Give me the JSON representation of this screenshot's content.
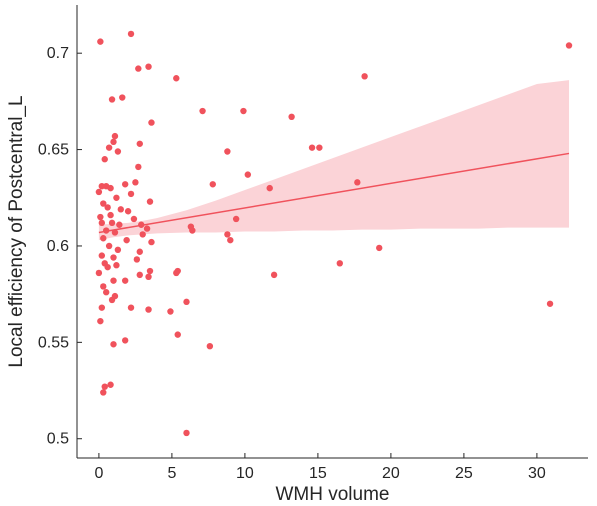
{
  "chart_data": {
    "type": "scatter",
    "title": "",
    "xlabel": "WMH volume",
    "ylabel": "Local efficiency of Postcentral_L",
    "xlim": [
      -1.5,
      33.5
    ],
    "ylim": [
      0.49,
      0.725
    ],
    "xticks": [
      0,
      5,
      10,
      15,
      20,
      25,
      30
    ],
    "yticks": [
      0.5,
      0.55,
      0.6,
      0.65,
      0.7
    ],
    "ytick_labels": [
      "0.5",
      "0.55",
      "0.6",
      "0.65",
      "0.7"
    ],
    "grid": false,
    "legend": "none",
    "colors": {
      "points": "#f0525c",
      "line": "#f0525c",
      "band": "#fbd3d7"
    },
    "fit_line": {
      "x": [
        0,
        32.2
      ],
      "y": [
        0.607,
        0.648
      ]
    },
    "confidence_band": {
      "x": [
        0,
        1,
        2,
        3,
        4,
        6,
        8,
        10,
        12,
        14,
        16,
        18,
        20,
        22,
        24,
        26,
        28,
        30,
        32.2
      ],
      "lower": [
        0.603,
        0.6045,
        0.6055,
        0.606,
        0.6065,
        0.607,
        0.607,
        0.6075,
        0.6075,
        0.608,
        0.608,
        0.6085,
        0.6085,
        0.609,
        0.609,
        0.609,
        0.6095,
        0.6095,
        0.6095
      ],
      "upper": [
        0.611,
        0.6115,
        0.612,
        0.613,
        0.6145,
        0.6185,
        0.6235,
        0.629,
        0.6345,
        0.64,
        0.6455,
        0.651,
        0.6565,
        0.662,
        0.6675,
        0.673,
        0.6785,
        0.684,
        0.686
      ]
    },
    "points": [
      {
        "x": 0.1,
        "y": 0.706
      },
      {
        "x": 2.2,
        "y": 0.71
      },
      {
        "x": 32.2,
        "y": 0.704
      },
      {
        "x": 3.4,
        "y": 0.693
      },
      {
        "x": 2.7,
        "y": 0.692
      },
      {
        "x": 5.3,
        "y": 0.687
      },
      {
        "x": 18.2,
        "y": 0.688
      },
      {
        "x": 0.9,
        "y": 0.676
      },
      {
        "x": 1.6,
        "y": 0.677
      },
      {
        "x": 7.1,
        "y": 0.67
      },
      {
        "x": 9.9,
        "y": 0.67
      },
      {
        "x": 13.2,
        "y": 0.667
      },
      {
        "x": 3.6,
        "y": 0.664
      },
      {
        "x": 1.1,
        "y": 0.657
      },
      {
        "x": 1.0,
        "y": 0.654
      },
      {
        "x": 0.7,
        "y": 0.651
      },
      {
        "x": 1.3,
        "y": 0.649
      },
      {
        "x": 2.8,
        "y": 0.653
      },
      {
        "x": 8.8,
        "y": 0.649
      },
      {
        "x": 14.6,
        "y": 0.651
      },
      {
        "x": 15.1,
        "y": 0.651
      },
      {
        "x": 0.4,
        "y": 0.645
      },
      {
        "x": 2.7,
        "y": 0.641
      },
      {
        "x": 10.2,
        "y": 0.637
      },
      {
        "x": 0.5,
        "y": 0.631
      },
      {
        "x": 0.2,
        "y": 0.631
      },
      {
        "x": 0.8,
        "y": 0.63
      },
      {
        "x": 1.8,
        "y": 0.632
      },
      {
        "x": 2.5,
        "y": 0.633
      },
      {
        "x": 7.8,
        "y": 0.632
      },
      {
        "x": 11.7,
        "y": 0.63
      },
      {
        "x": 17.7,
        "y": 0.633
      },
      {
        "x": 0.0,
        "y": 0.628
      },
      {
        "x": 1.2,
        "y": 0.625
      },
      {
        "x": 2.2,
        "y": 0.627
      },
      {
        "x": 0.3,
        "y": 0.622
      },
      {
        "x": 3.5,
        "y": 0.623
      },
      {
        "x": 0.6,
        "y": 0.62
      },
      {
        "x": 1.5,
        "y": 0.619
      },
      {
        "x": 2.0,
        "y": 0.618
      },
      {
        "x": 0.8,
        "y": 0.616
      },
      {
        "x": 0.1,
        "y": 0.615
      },
      {
        "x": 2.4,
        "y": 0.614
      },
      {
        "x": 9.4,
        "y": 0.614
      },
      {
        "x": 0.9,
        "y": 0.612
      },
      {
        "x": 0.2,
        "y": 0.612
      },
      {
        "x": 1.4,
        "y": 0.611
      },
      {
        "x": 2.9,
        "y": 0.611
      },
      {
        "x": 3.3,
        "y": 0.609
      },
      {
        "x": 6.3,
        "y": 0.61
      },
      {
        "x": 0.5,
        "y": 0.608
      },
      {
        "x": 1.1,
        "y": 0.607
      },
      {
        "x": 3.0,
        "y": 0.606
      },
      {
        "x": 6.4,
        "y": 0.608
      },
      {
        "x": 8.8,
        "y": 0.606
      },
      {
        "x": 0.3,
        "y": 0.604
      },
      {
        "x": 1.9,
        "y": 0.603
      },
      {
        "x": 3.6,
        "y": 0.602
      },
      {
        "x": 9.0,
        "y": 0.603
      },
      {
        "x": 0.7,
        "y": 0.6
      },
      {
        "x": 1.3,
        "y": 0.598
      },
      {
        "x": 2.8,
        "y": 0.597
      },
      {
        "x": 19.2,
        "y": 0.599
      },
      {
        "x": 0.2,
        "y": 0.595
      },
      {
        "x": 1.0,
        "y": 0.594
      },
      {
        "x": 2.6,
        "y": 0.593
      },
      {
        "x": 0.4,
        "y": 0.591
      },
      {
        "x": 1.2,
        "y": 0.59
      },
      {
        "x": 16.5,
        "y": 0.591
      },
      {
        "x": 0.6,
        "y": 0.589
      },
      {
        "x": 0.0,
        "y": 0.586
      },
      {
        "x": 3.5,
        "y": 0.587
      },
      {
        "x": 5.4,
        "y": 0.587
      },
      {
        "x": 2.8,
        "y": 0.585
      },
      {
        "x": 3.4,
        "y": 0.584
      },
      {
        "x": 12.0,
        "y": 0.585
      },
      {
        "x": 5.3,
        "y": 0.586
      },
      {
        "x": 1.0,
        "y": 0.582
      },
      {
        "x": 1.8,
        "y": 0.582
      },
      {
        "x": 0.3,
        "y": 0.579
      },
      {
        "x": 0.5,
        "y": 0.576
      },
      {
        "x": 1.1,
        "y": 0.574
      },
      {
        "x": 0.9,
        "y": 0.572
      },
      {
        "x": 6.0,
        "y": 0.571
      },
      {
        "x": 0.2,
        "y": 0.568
      },
      {
        "x": 2.2,
        "y": 0.568
      },
      {
        "x": 3.4,
        "y": 0.567
      },
      {
        "x": 4.9,
        "y": 0.566
      },
      {
        "x": 30.9,
        "y": 0.57
      },
      {
        "x": 0.1,
        "y": 0.561
      },
      {
        "x": 5.4,
        "y": 0.554
      },
      {
        "x": 1.8,
        "y": 0.551
      },
      {
        "x": 1.0,
        "y": 0.549
      },
      {
        "x": 7.6,
        "y": 0.548
      },
      {
        "x": 0.8,
        "y": 0.528
      },
      {
        "x": 0.4,
        "y": 0.527
      },
      {
        "x": 0.3,
        "y": 0.524
      },
      {
        "x": 6.0,
        "y": 0.503
      }
    ]
  }
}
